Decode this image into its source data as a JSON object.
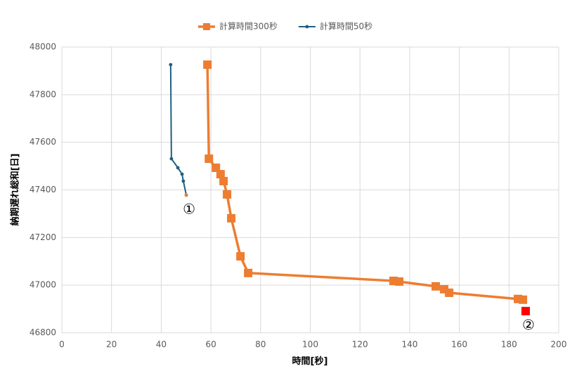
{
  "chart_data": {
    "type": "line",
    "xlabel": "時間[秒]",
    "ylabel": "納期遅れ総和[日]",
    "series": [
      {
        "name": "計算時間300秒",
        "color": "#ed7d31",
        "marker": "square",
        "x": [
          58.6,
          59.2,
          62.0,
          63.9,
          65.1,
          66.5,
          68.2,
          71.9,
          75.0,
          133.5,
          135.8,
          150.5,
          153.9,
          155.9,
          183.6,
          185.6
        ],
        "values": [
          47926,
          47531,
          47493,
          47466,
          47437,
          47381,
          47281,
          47121,
          47051,
          47018,
          47015,
          46995,
          46983,
          46968,
          46942,
          46939
        ]
      },
      {
        "name": "計算時間50秒",
        "color": "#1f5f7f",
        "marker": "circle",
        "x": [
          43.8,
          44.1,
          46.7,
          48.4,
          48.9,
          50.1
        ],
        "values": [
          47926,
          47531,
          47493,
          47466,
          47437,
          47378
        ]
      }
    ],
    "annotations": [
      {
        "text": "①",
        "x": 50.1,
        "y": 47378,
        "marker": "circle",
        "color": "#ed7d31"
      },
      {
        "text": "②",
        "x": 186.7,
        "y": 46891,
        "marker": "square",
        "color": "#ff0000"
      }
    ],
    "xlim": [
      0,
      200
    ],
    "xticks": [
      0,
      20,
      40,
      60,
      80,
      100,
      120,
      140,
      160,
      180,
      200
    ],
    "ylim": [
      46800,
      48000
    ],
    "yticks": [
      46800,
      47000,
      47200,
      47400,
      47600,
      47800,
      48000
    ],
    "grid": true,
    "legend": "top"
  }
}
